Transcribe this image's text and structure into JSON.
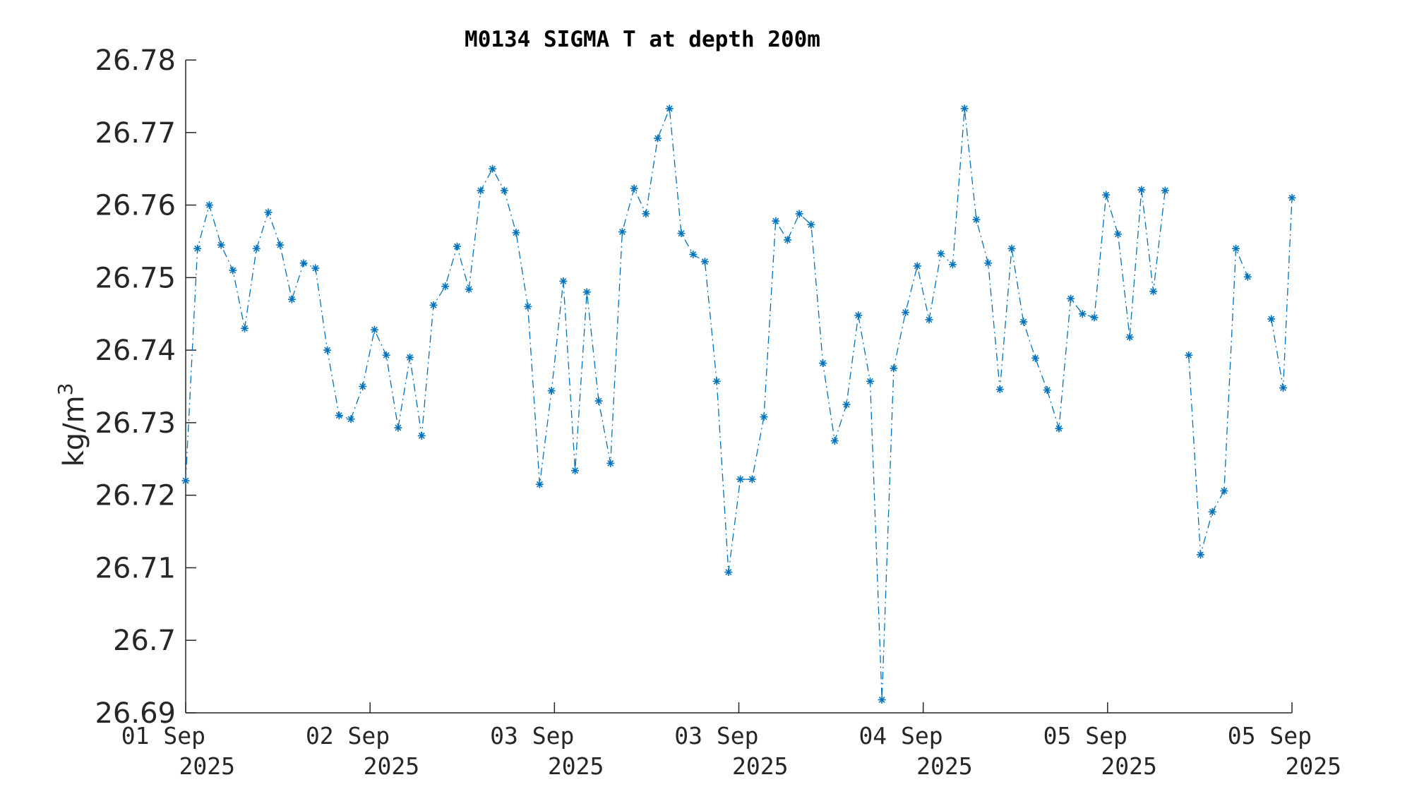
{
  "chart_data": {
    "type": "line",
    "title": "M0134 SIGMA T at depth 200m",
    "xlabel": "",
    "ylabel_main": "kg/m",
    "ylabel_sup": "3",
    "ylim": [
      26.69,
      26.78
    ],
    "yticks": [
      26.69,
      26.7,
      26.71,
      26.72,
      26.73,
      26.74,
      26.75,
      26.76,
      26.77,
      26.78
    ],
    "ytick_labels": [
      "26.69",
      "26.7",
      "26.71",
      "26.72",
      "26.73",
      "26.74",
      "26.75",
      "26.76",
      "26.77",
      "26.78"
    ],
    "xlim_days": [
      1.0,
      4.0
    ],
    "x_unit": "day of September 2025",
    "xticks": [
      {
        "x": 1.0,
        "line1": "01 Sep",
        "line2": "2025"
      },
      {
        "x": 1.5,
        "line1": "02 Sep",
        "line2": "2025"
      },
      {
        "x": 2.0,
        "line1": "03 Sep",
        "line2": "2025"
      },
      {
        "x": 2.5,
        "line1": "03 Sep",
        "line2": "2025"
      },
      {
        "x": 3.0,
        "line1": "04 Sep",
        "line2": "2025"
      },
      {
        "x": 3.5,
        "line1": "05 Sep",
        "line2": "2025"
      },
      {
        "x": 4.0,
        "line1": "05 Sep",
        "line2": "2025"
      }
    ],
    "grid": false,
    "marker": "asterisk",
    "line_style": "dash-dot",
    "series": [
      {
        "color": "#0072BD",
        "x": [
          1.0,
          1.032,
          1.064,
          1.096,
          1.128,
          1.16,
          1.192,
          1.224,
          1.256,
          1.288,
          1.32,
          1.352,
          1.384,
          1.416,
          1.448,
          1.48,
          1.512,
          1.544,
          1.576,
          1.608,
          1.64,
          1.672,
          1.704,
          1.736,
          1.768,
          1.8,
          1.832,
          1.864,
          1.896,
          1.928,
          1.96,
          1.992,
          2.024,
          2.056,
          2.088,
          2.12,
          2.152,
          2.184,
          2.216,
          2.248,
          2.28,
          2.312,
          2.344,
          2.376,
          2.408,
          2.44,
          2.472,
          2.504,
          2.536,
          2.568,
          2.6,
          2.632,
          2.664,
          2.696,
          2.728,
          2.76,
          2.792,
          2.824,
          2.856,
          2.888,
          2.92,
          2.952,
          2.984,
          3.016,
          3.048,
          3.08,
          3.112,
          3.144,
          3.176,
          3.208,
          3.24,
          3.272,
          3.304,
          3.336,
          3.368,
          3.4,
          3.432,
          3.464,
          3.496,
          3.528,
          3.56,
          3.592,
          3.624,
          3.656,
          3.688,
          3.72,
          3.752,
          3.784,
          3.816,
          3.848,
          3.88,
          3.912,
          3.944,
          3.976,
          4.0
        ],
        "y": [
          26.722,
          26.754,
          26.76,
          26.7545,
          26.751,
          26.743,
          26.754,
          26.759,
          26.7545,
          26.747,
          26.752,
          26.7513,
          26.74,
          26.731,
          26.7305,
          26.735,
          26.7428,
          26.7393,
          26.7293,
          26.739,
          26.7282,
          26.7462,
          26.7488,
          26.7543,
          26.7484,
          26.762,
          26.765,
          26.762,
          26.7562,
          26.746,
          26.7215,
          26.7344,
          26.7495,
          26.7234,
          26.748,
          26.733,
          26.7244,
          26.7563,
          26.7623,
          26.7588,
          26.7692,
          26.7733,
          26.7561,
          26.7532,
          26.7522,
          26.7357,
          26.7094,
          26.7222,
          26.7222,
          26.7308,
          26.7578,
          26.7552,
          26.7588,
          26.7573,
          26.7382,
          26.7275,
          26.7325,
          26.7448,
          26.7357,
          26.6918,
          26.7375,
          26.7452,
          26.7516,
          26.7442,
          26.7533,
          26.7518,
          26.7733,
          26.758,
          26.752,
          26.7346,
          26.754,
          26.7439,
          26.7389,
          26.7345,
          26.7292,
          26.7471,
          26.745,
          26.7445,
          26.7614,
          26.756,
          26.7418,
          26.7621,
          26.7481,
          26.762,
          null,
          26.7393,
          26.7118,
          26.7177,
          26.7206,
          26.754,
          26.7501,
          null,
          26.7443,
          26.7348,
          26.761
        ]
      }
    ]
  }
}
